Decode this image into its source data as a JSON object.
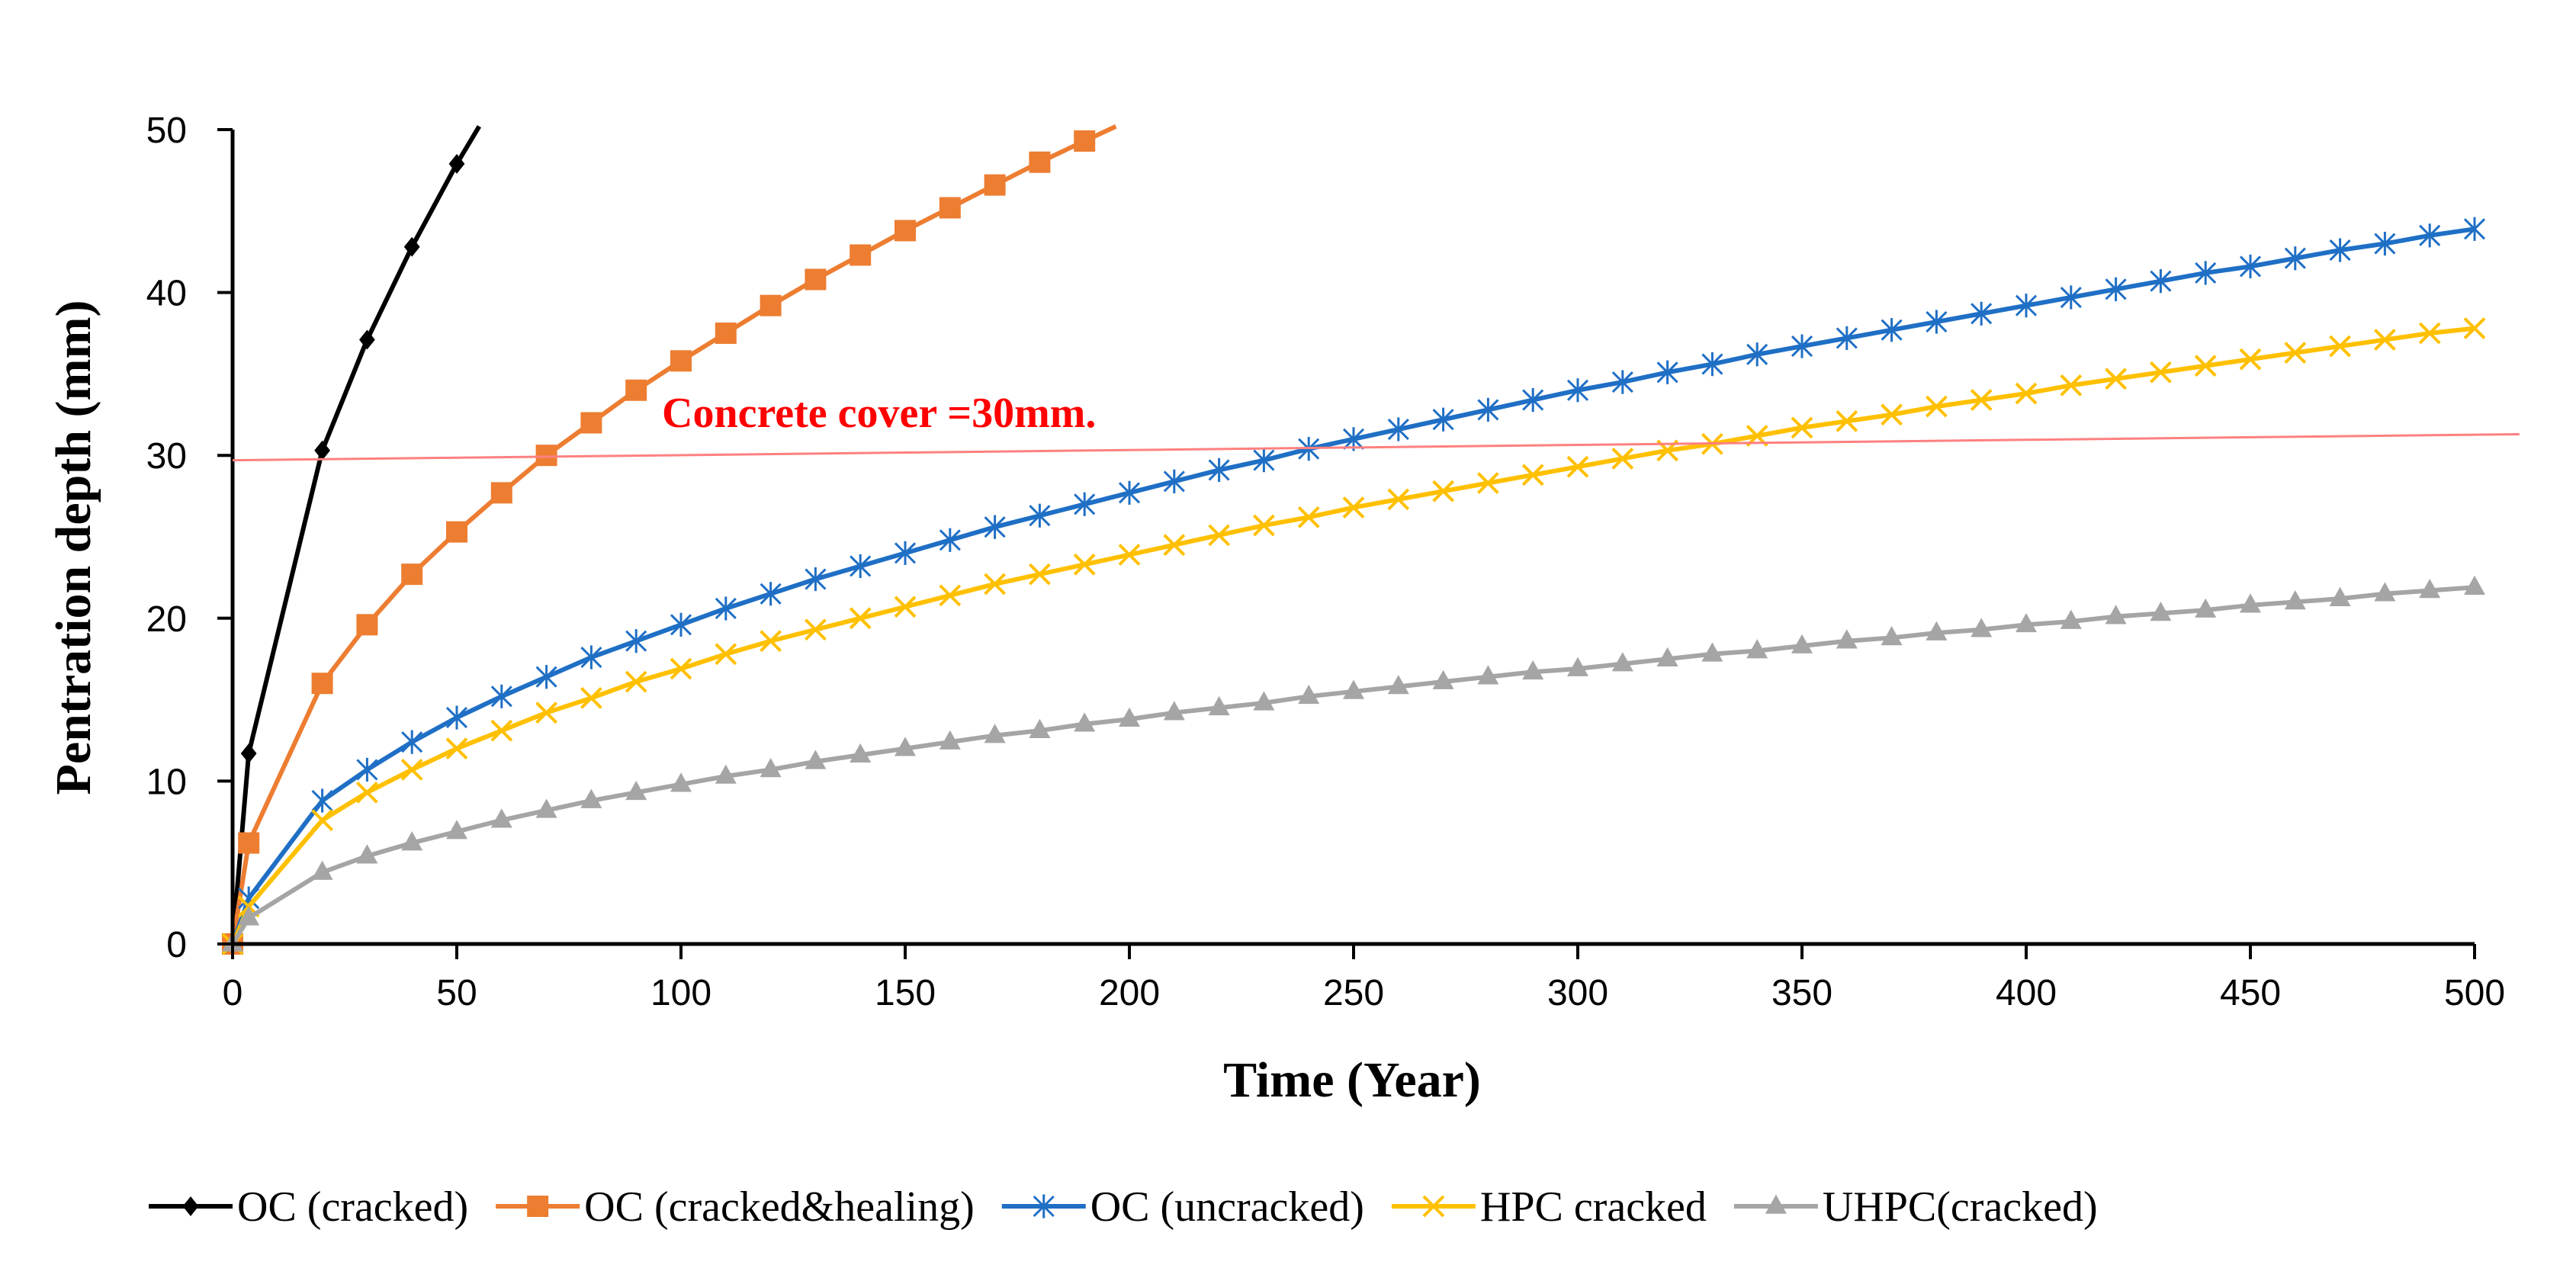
{
  "chart_data": {
    "type": "line",
    "title": "",
    "xlabel": "Time (Year)",
    "ylabel": "Pentration depth (mm)",
    "xlim": [
      0,
      500
    ],
    "ylim": [
      0,
      50
    ],
    "xticks": [
      0,
      50,
      100,
      150,
      200,
      250,
      300,
      350,
      400,
      450,
      500
    ],
    "yticks": [
      0,
      10,
      20,
      30,
      40,
      50
    ],
    "grid": false,
    "legend_position": "bottom",
    "annotation": {
      "text": "Concrete cover =30mm.",
      "color": "#ff0000",
      "reference_line": {
        "color": "#ff8080",
        "x": [
          0,
          510
        ],
        "y": [
          29.7,
          31.3
        ]
      }
    },
    "series": [
      {
        "name": "OC (cracked)",
        "color": "#000000",
        "marker": "diamond",
        "x": [
          0,
          3.6,
          20,
          30,
          40,
          50,
          55
        ],
        "y": [
          0,
          11.7,
          30.3,
          37.1,
          42.8,
          47.9,
          50.2
        ]
      },
      {
        "name": "OC (cracked&healing)",
        "color": "#ed7d31",
        "marker": "square",
        "x": [
          0,
          3.6,
          20,
          30,
          40,
          50,
          60,
          70,
          80,
          90,
          100,
          110,
          120,
          130,
          140,
          150,
          160,
          170,
          180,
          190,
          197
        ],
        "y": [
          0,
          6.2,
          16.0,
          19.6,
          22.7,
          25.3,
          27.7,
          30.0,
          32.0,
          34.0,
          35.8,
          37.5,
          39.2,
          40.8,
          42.3,
          43.8,
          45.2,
          46.6,
          48.0,
          49.3,
          50.2
        ]
      },
      {
        "name": "OC (uncracked)",
        "color": "#1f6fc5",
        "marker": "star",
        "x": [
          0,
          3.6,
          20,
          30,
          40,
          50,
          60,
          70,
          80,
          90,
          100,
          110,
          120,
          130,
          140,
          150,
          160,
          170,
          180,
          190,
          200,
          210,
          220,
          230,
          240,
          250,
          260,
          270,
          280,
          290,
          300,
          310,
          320,
          330,
          340,
          350,
          360,
          370,
          380,
          390,
          400,
          410,
          420,
          430,
          440,
          450,
          460,
          470,
          480,
          490,
          500
        ],
        "y": [
          0,
          2.8,
          8.8,
          10.7,
          12.4,
          13.9,
          15.2,
          16.4,
          17.6,
          18.6,
          19.6,
          20.6,
          21.5,
          22.4,
          23.2,
          24.0,
          24.8,
          25.6,
          26.3,
          27.0,
          27.7,
          28.4,
          29.1,
          29.7,
          30.4,
          31.0,
          31.6,
          32.2,
          32.8,
          33.4,
          34.0,
          34.5,
          35.1,
          35.6,
          36.2,
          36.7,
          37.2,
          37.7,
          38.2,
          38.7,
          39.2,
          39.7,
          40.2,
          40.7,
          41.2,
          41.6,
          42.1,
          42.6,
          43.0,
          43.5,
          43.9
        ]
      },
      {
        "name": "HPC cracked",
        "color": "#ffc000",
        "marker": "x",
        "x": [
          0,
          3.6,
          20,
          30,
          40,
          50,
          60,
          70,
          80,
          90,
          100,
          110,
          120,
          130,
          140,
          150,
          160,
          170,
          180,
          190,
          200,
          210,
          220,
          230,
          240,
          250,
          260,
          270,
          280,
          290,
          300,
          310,
          320,
          330,
          340,
          350,
          360,
          370,
          380,
          390,
          400,
          410,
          420,
          430,
          440,
          450,
          460,
          470,
          480,
          490,
          500
        ],
        "y": [
          0,
          2.3,
          7.6,
          9.3,
          10.7,
          12.0,
          13.1,
          14.2,
          15.1,
          16.1,
          16.9,
          17.8,
          18.6,
          19.3,
          20.0,
          20.7,
          21.4,
          22.1,
          22.7,
          23.3,
          23.9,
          24.5,
          25.1,
          25.7,
          26.2,
          26.8,
          27.3,
          27.8,
          28.3,
          28.8,
          29.3,
          29.8,
          30.3,
          30.7,
          31.2,
          31.7,
          32.1,
          32.5,
          33.0,
          33.4,
          33.8,
          34.3,
          34.7,
          35.1,
          35.5,
          35.9,
          36.3,
          36.7,
          37.1,
          37.5,
          37.8
        ]
      },
      {
        "name": "UHPC(cracked)",
        "color": "#a5a5a5",
        "marker": "triangle",
        "x": [
          0,
          3.6,
          20,
          30,
          40,
          50,
          60,
          70,
          80,
          90,
          100,
          110,
          120,
          130,
          140,
          150,
          160,
          170,
          180,
          190,
          200,
          210,
          220,
          230,
          240,
          250,
          260,
          270,
          280,
          290,
          300,
          310,
          320,
          330,
          340,
          350,
          360,
          370,
          380,
          390,
          400,
          410,
          420,
          430,
          440,
          450,
          460,
          470,
          480,
          490,
          500
        ],
        "y": [
          0,
          1.6,
          4.4,
          5.4,
          6.2,
          6.9,
          7.6,
          8.2,
          8.8,
          9.3,
          9.8,
          10.3,
          10.7,
          11.2,
          11.6,
          12.0,
          12.4,
          12.8,
          13.1,
          13.5,
          13.8,
          14.2,
          14.5,
          14.8,
          15.2,
          15.5,
          15.8,
          16.1,
          16.4,
          16.7,
          16.9,
          17.2,
          17.5,
          17.8,
          18.0,
          18.3,
          18.6,
          18.8,
          19.1,
          19.3,
          19.6,
          19.8,
          20.1,
          20.3,
          20.5,
          20.8,
          21.0,
          21.2,
          21.5,
          21.7,
          21.9
        ]
      }
    ]
  }
}
